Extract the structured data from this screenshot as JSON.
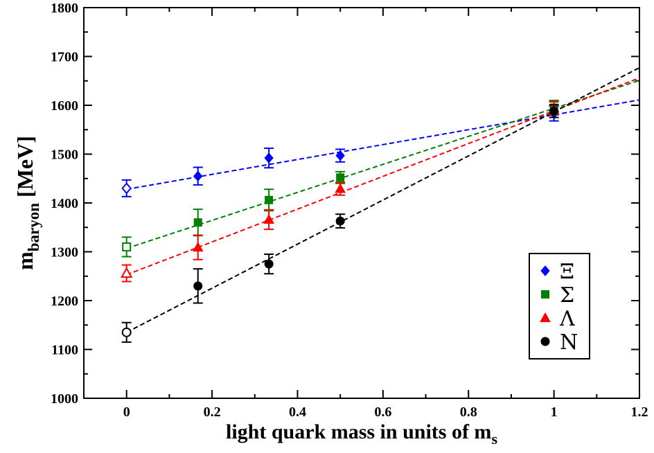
{
  "chart_data": {
    "type": "scatter",
    "xlabel": "light quark mass in units of m",
    "xlabel_sub": "s",
    "ylabel": "m",
    "ylabel_sub": "baryon",
    "ylabel_unit": "[MeV]",
    "xlim": [
      -0.1,
      1.2
    ],
    "ylim": [
      1000,
      1800
    ],
    "xticks": [
      0,
      0.2,
      0.4,
      0.6,
      0.8,
      1,
      1.2
    ],
    "xtick_labels": [
      "0",
      "0.2",
      "0.4",
      "0.6",
      "0.8",
      "1",
      "1.2"
    ],
    "yticks": [
      1000,
      1100,
      1200,
      1300,
      1400,
      1500,
      1600,
      1700,
      1800
    ],
    "ytick_labels": [
      "1000",
      "1100",
      "1200",
      "1300",
      "1400",
      "1500",
      "1600",
      "1700",
      "1800"
    ],
    "legend_position": "bottom-right",
    "series": [
      {
        "name": "Ξ",
        "color": "#0000ff",
        "marker": "diamond",
        "points": [
          {
            "x": 0,
            "y": 1430,
            "err": 17,
            "filled": false
          },
          {
            "x": 0.167,
            "y": 1455,
            "err": 18,
            "filled": true
          },
          {
            "x": 0.333,
            "y": 1492,
            "err": 20,
            "filled": true
          },
          {
            "x": 0.5,
            "y": 1497,
            "err": 13,
            "filled": true
          },
          {
            "x": 1,
            "y": 1583,
            "err": 15,
            "filled": true
          }
        ],
        "fit": [
          [
            0,
            1428
          ],
          [
            1.2,
            1611
          ]
        ]
      },
      {
        "name": "Σ",
        "color": "#008000",
        "marker": "square",
        "points": [
          {
            "x": 0,
            "y": 1310,
            "err": 20,
            "filled": false
          },
          {
            "x": 0.167,
            "y": 1360,
            "err": 27,
            "filled": true
          },
          {
            "x": 0.333,
            "y": 1406,
            "err": 22,
            "filled": true
          },
          {
            "x": 0.5,
            "y": 1452,
            "err": 12,
            "filled": true
          },
          {
            "x": 1,
            "y": 1595,
            "err": 15,
            "filled": true
          }
        ],
        "fit": [
          [
            0,
            1307
          ],
          [
            1.2,
            1651
          ]
        ]
      },
      {
        "name": "Λ",
        "color": "#ff0000",
        "marker": "triangle",
        "points": [
          {
            "x": 0,
            "y": 1256,
            "err": 17,
            "filled": false
          },
          {
            "x": 0.167,
            "y": 1309,
            "err": 25,
            "filled": true
          },
          {
            "x": 0.333,
            "y": 1366,
            "err": 20,
            "filled": true
          },
          {
            "x": 0.5,
            "y": 1429,
            "err": 13,
            "filled": true
          },
          {
            "x": 1,
            "y": 1594,
            "err": 13,
            "filled": true
          }
        ],
        "fit": [
          [
            0,
            1253
          ],
          [
            1.2,
            1656
          ]
        ]
      },
      {
        "name": "N",
        "color": "#000000",
        "marker": "circle",
        "points": [
          {
            "x": 0,
            "y": 1135,
            "err": 20,
            "filled": false
          },
          {
            "x": 0.167,
            "y": 1230,
            "err": 35,
            "filled": true
          },
          {
            "x": 0.333,
            "y": 1275,
            "err": 20,
            "filled": true
          },
          {
            "x": 0.5,
            "y": 1363,
            "err": 14,
            "filled": true
          },
          {
            "x": 1,
            "y": 1588,
            "err": 13,
            "filled": true
          }
        ],
        "fit": [
          [
            0,
            1135
          ],
          [
            1.2,
            1677
          ]
        ]
      }
    ]
  }
}
